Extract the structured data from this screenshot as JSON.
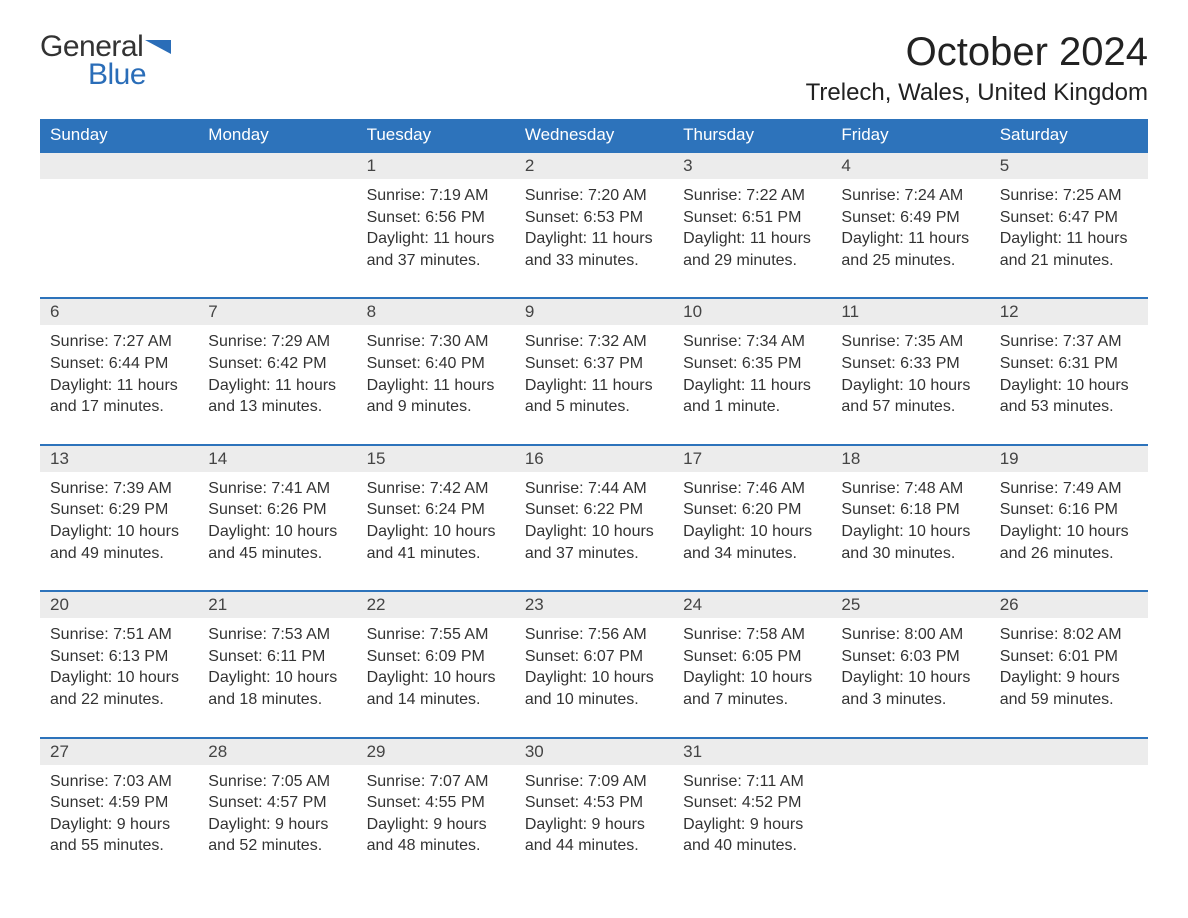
{
  "logo": {
    "word1": "General",
    "word2": "Blue",
    "flag_color": "#2a6db8"
  },
  "title": "October 2024",
  "location": "Trelech, Wales, United Kingdom",
  "colors": {
    "header_bg": "#2d73bb",
    "header_text": "#ffffff",
    "daynum_bg": "#ececec",
    "border": "#2d73bb",
    "body_text": "#333333",
    "page_bg": "#ffffff"
  },
  "day_labels": [
    "Sunday",
    "Monday",
    "Tuesday",
    "Wednesday",
    "Thursday",
    "Friday",
    "Saturday"
  ],
  "weeks": [
    {
      "nums": [
        "",
        "",
        "1",
        "2",
        "3",
        "4",
        "5"
      ],
      "cells": [
        null,
        null,
        {
          "sunrise": "7:19 AM",
          "sunset": "6:56 PM",
          "daylight": "11 hours and 37 minutes."
        },
        {
          "sunrise": "7:20 AM",
          "sunset": "6:53 PM",
          "daylight": "11 hours and 33 minutes."
        },
        {
          "sunrise": "7:22 AM",
          "sunset": "6:51 PM",
          "daylight": "11 hours and 29 minutes."
        },
        {
          "sunrise": "7:24 AM",
          "sunset": "6:49 PM",
          "daylight": "11 hours and 25 minutes."
        },
        {
          "sunrise": "7:25 AM",
          "sunset": "6:47 PM",
          "daylight": "11 hours and 21 minutes."
        }
      ]
    },
    {
      "nums": [
        "6",
        "7",
        "8",
        "9",
        "10",
        "11",
        "12"
      ],
      "cells": [
        {
          "sunrise": "7:27 AM",
          "sunset": "6:44 PM",
          "daylight": "11 hours and 17 minutes."
        },
        {
          "sunrise": "7:29 AM",
          "sunset": "6:42 PM",
          "daylight": "11 hours and 13 minutes."
        },
        {
          "sunrise": "7:30 AM",
          "sunset": "6:40 PM",
          "daylight": "11 hours and 9 minutes."
        },
        {
          "sunrise": "7:32 AM",
          "sunset": "6:37 PM",
          "daylight": "11 hours and 5 minutes."
        },
        {
          "sunrise": "7:34 AM",
          "sunset": "6:35 PM",
          "daylight": "11 hours and 1 minute."
        },
        {
          "sunrise": "7:35 AM",
          "sunset": "6:33 PM",
          "daylight": "10 hours and 57 minutes."
        },
        {
          "sunrise": "7:37 AM",
          "sunset": "6:31 PM",
          "daylight": "10 hours and 53 minutes."
        }
      ]
    },
    {
      "nums": [
        "13",
        "14",
        "15",
        "16",
        "17",
        "18",
        "19"
      ],
      "cells": [
        {
          "sunrise": "7:39 AM",
          "sunset": "6:29 PM",
          "daylight": "10 hours and 49 minutes."
        },
        {
          "sunrise": "7:41 AM",
          "sunset": "6:26 PM",
          "daylight": "10 hours and 45 minutes."
        },
        {
          "sunrise": "7:42 AM",
          "sunset": "6:24 PM",
          "daylight": "10 hours and 41 minutes."
        },
        {
          "sunrise": "7:44 AM",
          "sunset": "6:22 PM",
          "daylight": "10 hours and 37 minutes."
        },
        {
          "sunrise": "7:46 AM",
          "sunset": "6:20 PM",
          "daylight": "10 hours and 34 minutes."
        },
        {
          "sunrise": "7:48 AM",
          "sunset": "6:18 PM",
          "daylight": "10 hours and 30 minutes."
        },
        {
          "sunrise": "7:49 AM",
          "sunset": "6:16 PM",
          "daylight": "10 hours and 26 minutes."
        }
      ]
    },
    {
      "nums": [
        "20",
        "21",
        "22",
        "23",
        "24",
        "25",
        "26"
      ],
      "cells": [
        {
          "sunrise": "7:51 AM",
          "sunset": "6:13 PM",
          "daylight": "10 hours and 22 minutes."
        },
        {
          "sunrise": "7:53 AM",
          "sunset": "6:11 PM",
          "daylight": "10 hours and 18 minutes."
        },
        {
          "sunrise": "7:55 AM",
          "sunset": "6:09 PM",
          "daylight": "10 hours and 14 minutes."
        },
        {
          "sunrise": "7:56 AM",
          "sunset": "6:07 PM",
          "daylight": "10 hours and 10 minutes."
        },
        {
          "sunrise": "7:58 AM",
          "sunset": "6:05 PM",
          "daylight": "10 hours and 7 minutes."
        },
        {
          "sunrise": "8:00 AM",
          "sunset": "6:03 PM",
          "daylight": "10 hours and 3 minutes."
        },
        {
          "sunrise": "8:02 AM",
          "sunset": "6:01 PM",
          "daylight": "9 hours and 59 minutes."
        }
      ]
    },
    {
      "nums": [
        "27",
        "28",
        "29",
        "30",
        "31",
        "",
        ""
      ],
      "cells": [
        {
          "sunrise": "7:03 AM",
          "sunset": "4:59 PM",
          "daylight": "9 hours and 55 minutes."
        },
        {
          "sunrise": "7:05 AM",
          "sunset": "4:57 PM",
          "daylight": "9 hours and 52 minutes."
        },
        {
          "sunrise": "7:07 AM",
          "sunset": "4:55 PM",
          "daylight": "9 hours and 48 minutes."
        },
        {
          "sunrise": "7:09 AM",
          "sunset": "4:53 PM",
          "daylight": "9 hours and 44 minutes."
        },
        {
          "sunrise": "7:11 AM",
          "sunset": "4:52 PM",
          "daylight": "9 hours and 40 minutes."
        },
        null,
        null
      ]
    }
  ],
  "labels": {
    "sunrise": "Sunrise: ",
    "sunset": "Sunset: ",
    "daylight": "Daylight: "
  }
}
